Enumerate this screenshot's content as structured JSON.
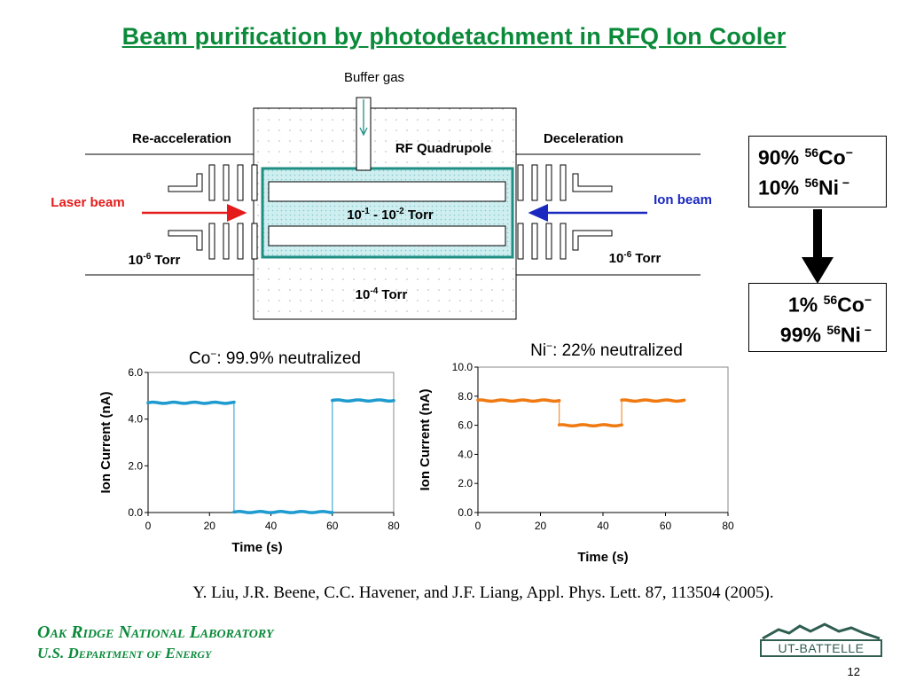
{
  "title": "Beam purification by photodetachment in RFQ Ion Cooler",
  "diagram": {
    "buffer_gas": "Buffer gas",
    "re_acceleration": "Re-acceleration",
    "deceleration": "Deceleration",
    "rf_quadrupole": "RF Quadrupole",
    "laser_beam": "Laser beam",
    "ion_beam": "Ion beam",
    "pressure_center": {
      "base": "10",
      "exp1": "-1",
      "mid": " - 10",
      "exp2": "-2",
      "unit": " Torr"
    },
    "pressure_left": {
      "base": "10",
      "exp": "-6",
      "unit": " Torr"
    },
    "pressure_right": {
      "base": "10",
      "exp": "-6",
      "unit": " Torr"
    },
    "pressure_bottom": {
      "base": "10",
      "exp": "-4",
      "unit": " Torr"
    },
    "colors": {
      "laser": "#e41b1b",
      "ion": "#1a28c0",
      "quad_fill": "#bfe8ec",
      "chamber_border": "#1f8f84"
    }
  },
  "composition": {
    "before": [
      {
        "pct": "90%",
        "mass": "56",
        "elem": "Co",
        "charge": "−"
      },
      {
        "pct": "10%",
        "mass": "56",
        "elem": "Ni",
        "charge": " −"
      }
    ],
    "after": [
      {
        "pct": "1%",
        "mass": "56",
        "elem": "Co",
        "charge": "−"
      },
      {
        "pct": "99%",
        "mass": "56",
        "elem": "Ni",
        "charge": " −"
      }
    ],
    "arrow_icon": "down-arrow-icon"
  },
  "chart_data": [
    {
      "type": "scatter",
      "title_ion": "Co",
      "title_charge": "−",
      "title_rest": ": 99.9% neutralized",
      "xlabel": "Time (s)",
      "ylabel": "Ion Current (nA)",
      "xlim": [
        0,
        80
      ],
      "ylim": [
        0,
        6
      ],
      "xticks": [
        0,
        20,
        40,
        60,
        80
      ],
      "yticks": [
        "0.0",
        "2.0",
        "4.0",
        "6.0"
      ],
      "color": "#1f9bcf",
      "series": [
        {
          "x_start": 0,
          "x_end": 28,
          "y": 4.7
        },
        {
          "x_start": 28,
          "x_end": 60,
          "y": 0.02
        },
        {
          "x_start": 60,
          "x_end": 80,
          "y": 4.8
        }
      ]
    },
    {
      "type": "scatter",
      "title_ion": "Ni",
      "title_charge": "−",
      "title_rest": ": 22% neutralized",
      "xlabel": "Time (s)",
      "ylabel": "Ion Current (nA)",
      "xlim": [
        0,
        80
      ],
      "ylim": [
        0,
        10
      ],
      "xticks": [
        0,
        20,
        40,
        60,
        80
      ],
      "yticks": [
        "0.0",
        "2.0",
        "4.0",
        "6.0",
        "8.0",
        "10.0"
      ],
      "color": "#f07a12",
      "series": [
        {
          "x_start": 0,
          "x_end": 26,
          "y": 7.7
        },
        {
          "x_start": 26,
          "x_end": 46,
          "y": 6.0
        },
        {
          "x_start": 46,
          "x_end": 66,
          "y": 7.7
        }
      ]
    }
  ],
  "citation": "Y. Liu, J.R. Beene, C.C. Havener, and J.F. Liang, Appl. Phys. Lett. 87, 113504 (2005).",
  "footer": {
    "lab": "Oak Ridge National Laboratory",
    "dept": "U.S. Department of Energy",
    "logo_text": "UT-BATTELLE",
    "page": "12"
  }
}
